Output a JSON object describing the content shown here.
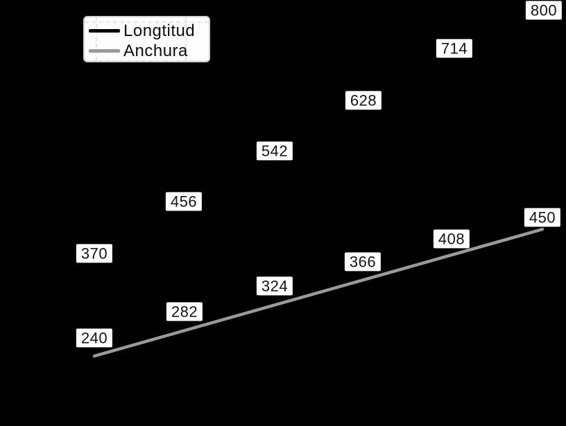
{
  "chart_data": {
    "type": "line",
    "x_count": 6,
    "series": [
      {
        "name": "Longtitud",
        "color": "#000000",
        "values": [
          370,
          456,
          542,
          628,
          714,
          800
        ]
      },
      {
        "name": "Anchura",
        "color": "#9a9a9a",
        "values": [
          240,
          282,
          324,
          366,
          408,
          450
        ]
      }
    ],
    "legend_position": "upper-left",
    "background_color": "#000000",
    "data_labels_shown": true,
    "label_box_color": "#ffffff",
    "label_text_color": "#141414",
    "legend_frame_color": "#fdfdfd",
    "gridline_color": "#e4e4e4",
    "grid_style": "dashed"
  }
}
